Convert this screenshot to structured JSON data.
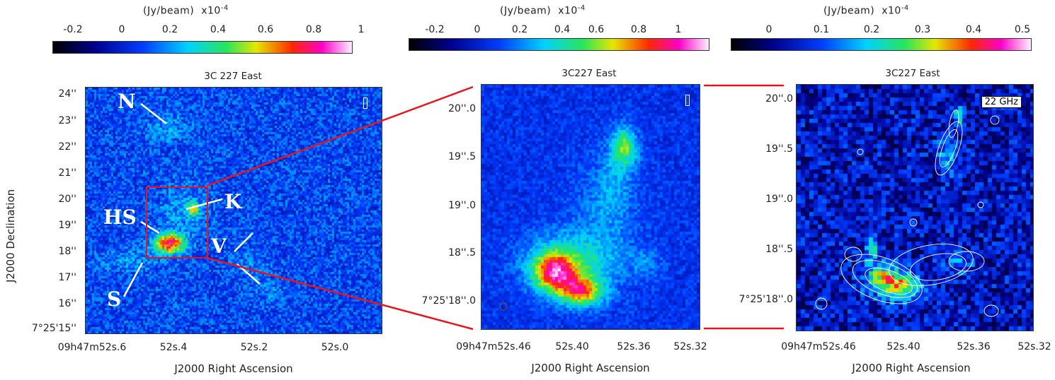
{
  "colorbars": [
    {
      "unit_label": "(Jy/beam)",
      "scale_label": "x10",
      "scale_exp": "-4",
      "ticks": [
        "-0.2",
        "0",
        "0.2",
        "0.4",
        "0.6",
        "0.8",
        "1"
      ]
    },
    {
      "unit_label": "(Jy/beam)",
      "scale_label": "x10",
      "scale_exp": "-4",
      "ticks": [
        "-0.2",
        "0",
        "0.2",
        "0.4",
        "0.6",
        "0.8",
        "1"
      ]
    },
    {
      "unit_label": "(Jy/beam)",
      "scale_label": "x10",
      "scale_exp": "-4",
      "ticks": [
        "0",
        "0.1",
        "0.2",
        "0.3",
        "0.4",
        "0.5"
      ]
    }
  ],
  "panels": [
    {
      "title": "3C 227 East",
      "y_ticks": [
        "24''",
        "23''",
        "22''",
        "21''",
        "20''",
        "19''",
        "18''",
        "17''",
        "16''",
        "7°25'15''"
      ],
      "x_ticks": [
        "09h47m52s.6",
        "52s.4",
        "52s.2",
        "52s.0"
      ],
      "labels": {
        "N": "N",
        "K": "K",
        "HS": "HS",
        "V": "V",
        "S": "S"
      },
      "stokes": "I"
    },
    {
      "title": "3C227 East",
      "y_ticks": [
        "20''.0",
        "19''.5",
        "19''.0",
        "18''.5",
        "7°25'18''.0"
      ],
      "x_ticks": [
        "09h47m52s.46",
        "52s.40",
        "52s.36",
        "52s.32"
      ],
      "stokes": "I"
    },
    {
      "title": "3C227 East",
      "y_ticks": [
        "20''.0",
        "19''.5",
        "19''.0",
        "18''.5",
        "7°25'18''.0"
      ],
      "x_ticks": [
        "09h47m52s.46",
        "52s.40",
        "52s.36",
        "52s.32"
      ],
      "band": "22 GHz"
    }
  ],
  "axes": {
    "y_title": "J2000 Declination",
    "x_title": "J2000 Right Ascension"
  },
  "colors": {
    "zoom_lines": "#e8141e",
    "zoom_box": "#e8141e",
    "annotation": "#ffffff"
  }
}
